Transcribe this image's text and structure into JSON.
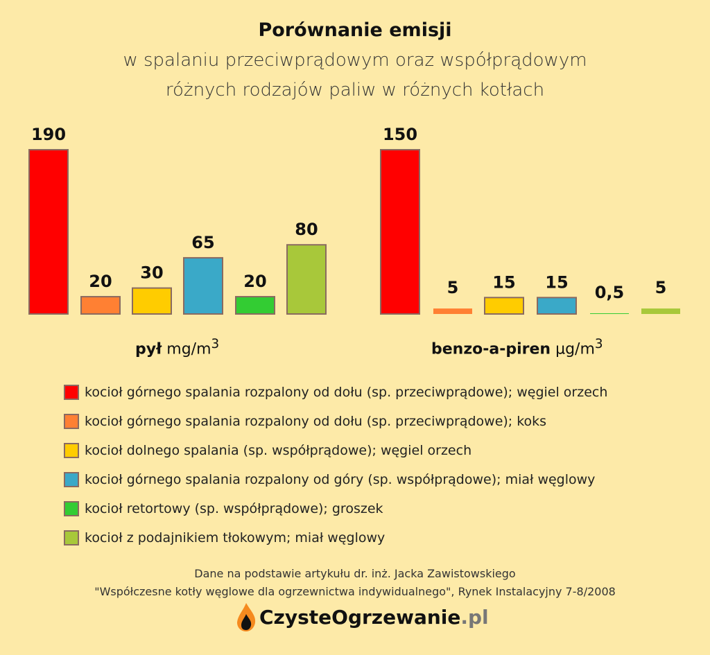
{
  "title": "Porównanie emisji",
  "subtitle1": "w spalaniu przeciwprądowym oraz współprądowym",
  "subtitle2": "różnych rodzajów paliw w różnych kotłach",
  "chart_data": [
    {
      "type": "bar",
      "name": "pył",
      "unit": "mg/m",
      "unit_sup": "3",
      "categories": [
        "kocioł górnego spalania rozpalony od dołu (sp. przeciwprądowe); węgiel orzech",
        "kocioł górnego spalania rozpalony od dołu (sp. przeciwprądowe); koks",
        "kocioł dolnego spalania (sp. współprądowe); węgiel orzech",
        "kocioł górnego spalania rozpalony od góry (sp. współprądowe); miał węglowy",
        "kocioł retortowy (sp. współprądowe); groszek",
        "kocioł z podajnikiem tłokowym; miał węglowy"
      ],
      "values": [
        190,
        20,
        30,
        65,
        20,
        80
      ],
      "labels": [
        "190",
        "20",
        "30",
        "65",
        "20",
        "80"
      ],
      "ylim": [
        0,
        190
      ]
    },
    {
      "type": "bar",
      "name": "benzo-a-piren",
      "unit": "µg/m",
      "unit_sup": "3",
      "categories": [
        "kocioł górnego spalania rozpalony od dołu (sp. przeciwprądowe); węgiel orzech",
        "kocioł górnego spalania rozpalony od dołu (sp. przeciwprądowe); koks",
        "kocioł dolnego spalania (sp. współprądowe); węgiel orzech",
        "kocioł górnego spalania rozpalony od góry (sp. współprądowe); miał węglowy",
        "kocioł retortowy (sp. współprądowe); groszek",
        "kocioł z podajnikiem tłokowym; miał węglowy"
      ],
      "values": [
        150,
        5,
        15,
        15,
        0.5,
        5
      ],
      "labels": [
        "150",
        "5",
        "15",
        "15",
        "0,5",
        "5"
      ],
      "ylim": [
        0,
        150
      ]
    }
  ],
  "colors": [
    "#ff0000",
    "#ff8033",
    "#ffcc00",
    "#3aa9c8",
    "#33cc33",
    "#a8c83a"
  ],
  "legend": [
    "kocioł górnego spalania rozpalony od dołu (sp. przeciwprądowe); węgiel orzech",
    "kocioł górnego spalania rozpalony od dołu (sp. przeciwprądowe); koks",
    "kocioł dolnego spalania (sp. współprądowe); węgiel orzech",
    "kocioł górnego spalania rozpalony od góry (sp. współprądowe); miał węglowy",
    "kocioł retortowy (sp. współprądowe); groszek",
    "kocioł z podajnikiem tłokowym; miał węglowy"
  ],
  "source1": "Dane na podstawie artykułu dr. inż. Jacka Zawistowskiego",
  "source2": "\"Współczesne kotły węglowe dla ogrzewnictwa indywidualnego\", Rynek Instalacyjny 7-8/2008",
  "logo": {
    "main": "CzysteOgrzewanie",
    "tld": ".pl"
  }
}
